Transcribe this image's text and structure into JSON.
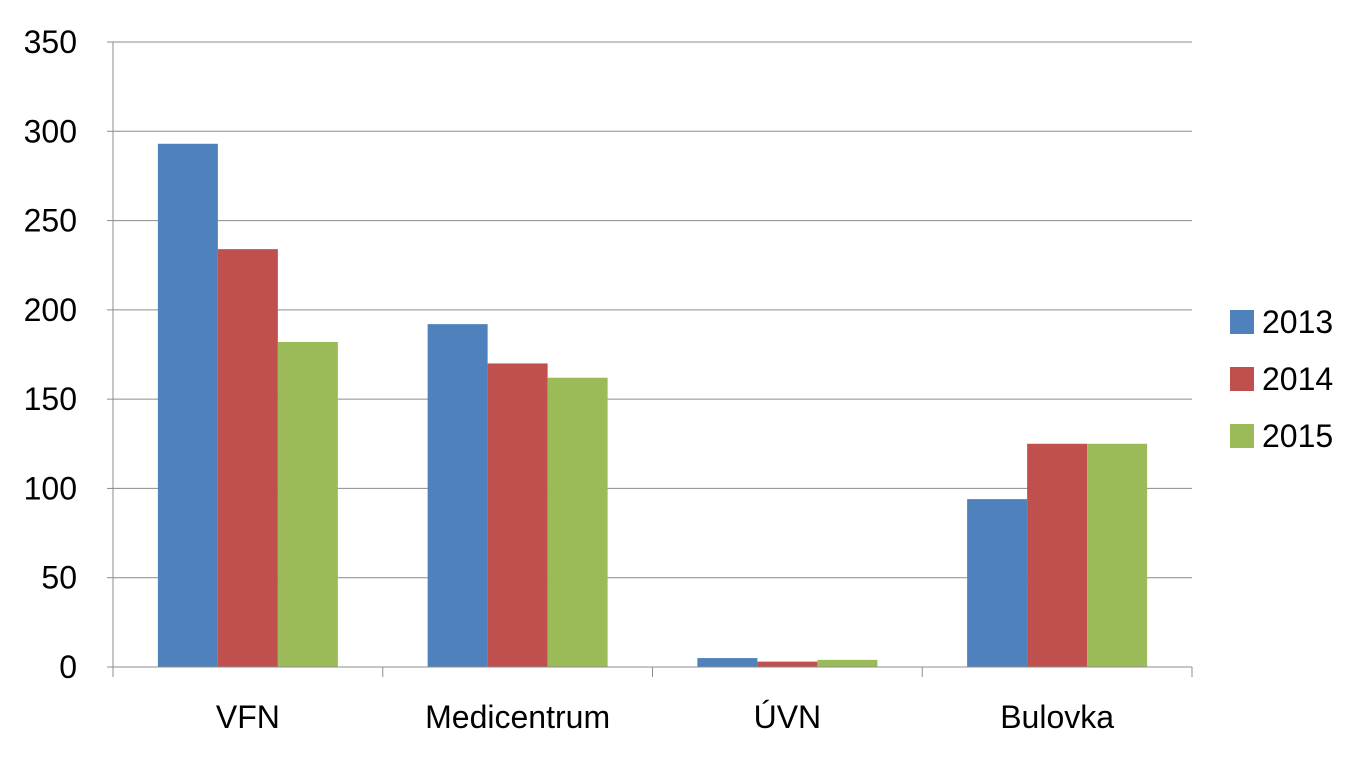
{
  "chart_data": {
    "type": "bar",
    "categories": [
      "VFN",
      "Medicentrum",
      "ÚVN",
      "Bulovka"
    ],
    "series": [
      {
        "name": "2013",
        "color": "#4F81BD",
        "values": [
          293,
          192,
          5,
          94
        ]
      },
      {
        "name": "2014",
        "color": "#C0504D",
        "values": [
          234,
          170,
          3,
          125
        ]
      },
      {
        "name": "2015",
        "color": "#9BBB59",
        "values": [
          182,
          162,
          4,
          125
        ]
      }
    ],
    "ylim": [
      0,
      350
    ],
    "yticks": [
      0,
      50,
      100,
      150,
      200,
      250,
      300,
      350
    ],
    "grid": true,
    "legend": "right",
    "title": "",
    "xlabel": "",
    "ylabel": ""
  }
}
